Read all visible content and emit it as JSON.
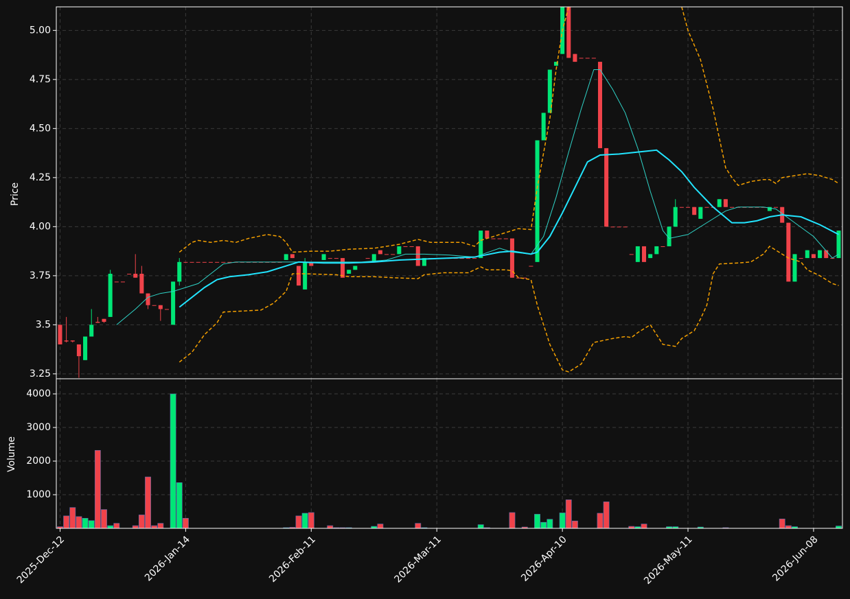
{
  "chart_data": {
    "type": "candlestick",
    "y_label": "Price",
    "y2_label": "Volume",
    "xlim": [
      -0.6,
      124.6
    ],
    "xticks": [
      {
        "value": 0,
        "label": "2025-Dec-12"
      },
      {
        "value": 20,
        "label": "2026-Jan-14"
      },
      {
        "value": 40,
        "label": "2026-Feb-11"
      },
      {
        "value": 60,
        "label": "2026-Mar-11"
      },
      {
        "value": 80,
        "label": "2026-Apr-10"
      },
      {
        "value": 100,
        "label": "2026-May-11"
      },
      {
        "value": 120,
        "label": "2026-Jun-08"
      }
    ],
    "ylim": [
      3.225,
      5.12
    ],
    "yticks": [
      3.25,
      3.5,
      3.75,
      {
        "value": 4,
        "label": "4.00"
      },
      4.25,
      {
        "value": 4.5,
        "label": "4.50"
      },
      4.75,
      {
        "value": 5,
        "label": "5.00"
      }
    ],
    "volume_ylim": [
      0,
      4450
    ],
    "volume_yticks": [
      1000,
      2000,
      3000,
      4000
    ],
    "grid": true,
    "up_color": "#00e676",
    "down_color": "#f0434a",
    "ohlc": [
      [
        3.5,
        3.5,
        3.4,
        3.4
      ],
      [
        3.42,
        3.54,
        3.41,
        3.415
      ],
      [
        3.42,
        3.42,
        3.41,
        3.415
      ],
      [
        3.4,
        3.4,
        3.23,
        3.34
      ],
      [
        3.32,
        3.44,
        3.32,
        3.44
      ],
      [
        3.44,
        3.58,
        3.44,
        3.5
      ],
      [
        3.515,
        3.54,
        3.51,
        3.51
      ],
      [
        3.53,
        3.53,
        3.51,
        3.515
      ],
      [
        3.54,
        3.78,
        3.54,
        3.76
      ],
      [
        3.72,
        3.72,
        3.72,
        3.719
      ],
      [
        3.72,
        3.72,
        3.72,
        3.719
      ],
      [
        3.76,
        3.76,
        3.76,
        3.759
      ],
      [
        3.76,
        3.86,
        3.74,
        3.74
      ],
      [
        3.76,
        3.8,
        3.66,
        3.66
      ],
      [
        3.66,
        3.66,
        3.58,
        3.6
      ],
      [
        3.6,
        3.6,
        3.6,
        3.599
      ],
      [
        3.6,
        3.6,
        3.52,
        3.58
      ],
      [
        3.58,
        3.58,
        3.58,
        3.579
      ],
      [
        3.5,
        3.72,
        3.5,
        3.72
      ],
      [
        3.72,
        3.84,
        3.7,
        3.82
      ],
      [
        3.82,
        3.82,
        3.82,
        3.819
      ],
      [
        3.82,
        3.82,
        3.82,
        3.819
      ],
      [
        3.82,
        3.82,
        3.82,
        3.819
      ],
      [
        3.82,
        3.82,
        3.82,
        3.819
      ],
      [
        3.82,
        3.82,
        3.82,
        3.819
      ],
      [
        3.82,
        3.82,
        3.82,
        3.819
      ],
      [
        3.82,
        3.82,
        3.82,
        3.819
      ],
      [
        3.82,
        3.82,
        3.82,
        3.819
      ],
      [
        3.82,
        3.82,
        3.82,
        3.819
      ],
      [
        3.82,
        3.82,
        3.82,
        3.819
      ],
      [
        3.82,
        3.82,
        3.82,
        3.819
      ],
      [
        3.82,
        3.82,
        3.82,
        3.819
      ],
      [
        3.82,
        3.82,
        3.82,
        3.819
      ],
      [
        3.82,
        3.82,
        3.82,
        3.819
      ],
      [
        3.82,
        3.82,
        3.82,
        3.819
      ],
      [
        3.82,
        3.82,
        3.82,
        3.819
      ],
      [
        3.83,
        3.86,
        3.83,
        3.86
      ],
      [
        3.86,
        3.86,
        3.84,
        3.84
      ],
      [
        3.8,
        3.8,
        3.7,
        3.7
      ],
      [
        3.68,
        3.84,
        3.68,
        3.82
      ],
      [
        3.82,
        3.82,
        3.8,
        3.8
      ],
      [
        3.82,
        3.82,
        3.82,
        3.819
      ],
      [
        3.83,
        3.86,
        3.83,
        3.86
      ],
      [
        3.84,
        3.84,
        3.84,
        3.839
      ],
      [
        3.84,
        3.84,
        3.84,
        3.839
      ],
      [
        3.84,
        3.84,
        3.74,
        3.74
      ],
      [
        3.76,
        3.78,
        3.76,
        3.78
      ],
      [
        3.78,
        3.8,
        3.78,
        3.8
      ],
      [
        3.82,
        3.82,
        3.82,
        3.819
      ],
      [
        3.84,
        3.84,
        3.84,
        3.839
      ],
      [
        3.82,
        3.86,
        3.82,
        3.86
      ],
      [
        3.88,
        3.88,
        3.86,
        3.86
      ],
      [
        3.86,
        3.86,
        3.86,
        3.859
      ],
      [
        3.86,
        3.86,
        3.86,
        3.859
      ],
      [
        3.86,
        3.9,
        3.86,
        3.9
      ],
      [
        3.9,
        3.9,
        3.9,
        3.899
      ],
      [
        3.9,
        3.9,
        3.9,
        3.899
      ],
      [
        3.9,
        3.9,
        3.8,
        3.8
      ],
      [
        3.8,
        3.84,
        3.8,
        3.84
      ],
      [
        3.84,
        3.84,
        3.84,
        3.839
      ],
      [
        3.84,
        3.84,
        3.84,
        3.839
      ],
      [
        3.84,
        3.84,
        3.84,
        3.839
      ],
      [
        3.84,
        3.84,
        3.84,
        3.839
      ],
      [
        3.84,
        3.84,
        3.84,
        3.839
      ],
      [
        3.84,
        3.84,
        3.84,
        3.839
      ],
      [
        3.84,
        3.84,
        3.84,
        3.839
      ],
      [
        3.84,
        3.84,
        3.84,
        3.839
      ],
      [
        3.84,
        3.98,
        3.84,
        3.98
      ],
      [
        3.98,
        3.98,
        3.94,
        3.94
      ],
      [
        3.94,
        3.94,
        3.94,
        3.939
      ],
      [
        3.94,
        3.94,
        3.94,
        3.939
      ],
      [
        3.94,
        3.94,
        3.94,
        3.939
      ],
      [
        3.94,
        3.94,
        3.74,
        3.74
      ],
      [
        3.74,
        3.74,
        3.74,
        3.739
      ],
      [
        3.74,
        3.74,
        3.74,
        3.739
      ],
      [
        3.8,
        3.8,
        3.8,
        3.799
      ],
      [
        3.82,
        4.44,
        3.82,
        4.44
      ],
      [
        4.44,
        4.58,
        4.44,
        4.58
      ],
      [
        4.58,
        4.8,
        4.58,
        4.8
      ],
      [
        4.82,
        4.84,
        4.82,
        4.84
      ],
      [
        4.88,
        5.12,
        4.88,
        5.12
      ],
      [
        5.12,
        5.12,
        4.86,
        4.86
      ],
      [
        4.88,
        4.88,
        4.84,
        4.84
      ],
      [
        4.86,
        4.86,
        4.86,
        4.859
      ],
      [
        4.86,
        4.86,
        4.86,
        4.859
      ],
      [
        4.86,
        4.86,
        4.86,
        4.859
      ],
      [
        4.84,
        4.84,
        4.4,
        4.4
      ],
      [
        4.4,
        4.4,
        4.0,
        4.0
      ],
      [
        4.0,
        4.0,
        4.0,
        3.999
      ],
      [
        4.0,
        4.0,
        4.0,
        3.999
      ],
      [
        4.0,
        4.0,
        4.0,
        3.999
      ],
      [
        3.86,
        3.86,
        3.86,
        3.859
      ],
      [
        3.82,
        3.9,
        3.82,
        3.9
      ],
      [
        3.9,
        3.9,
        3.82,
        3.82
      ],
      [
        3.84,
        3.86,
        3.84,
        3.86
      ],
      [
        3.86,
        3.9,
        3.86,
        3.9
      ],
      [
        3.9,
        3.9,
        3.9,
        3.899
      ],
      [
        3.9,
        4.0,
        3.9,
        4.0
      ],
      [
        4.0,
        4.14,
        4.0,
        4.1
      ],
      [
        4.1,
        4.1,
        4.1,
        4.099
      ],
      [
        4.1,
        4.1,
        4.1,
        4.099
      ],
      [
        4.1,
        4.1,
        4.06,
        4.06
      ],
      [
        4.04,
        4.1,
        4.04,
        4.1
      ],
      [
        4.1,
        4.1,
        4.1,
        4.099
      ],
      [
        4.1,
        4.1,
        4.1,
        4.099
      ],
      [
        4.1,
        4.14,
        4.1,
        4.14
      ],
      [
        4.14,
        4.14,
        4.1,
        4.1
      ],
      [
        4.1,
        4.1,
        4.1,
        4.099
      ],
      [
        4.1,
        4.1,
        4.1,
        4.099
      ],
      [
        4.1,
        4.1,
        4.1,
        4.099
      ],
      [
        4.1,
        4.1,
        4.1,
        4.099
      ],
      [
        4.1,
        4.1,
        4.1,
        4.099
      ],
      [
        4.1,
        4.1,
        4.1,
        4.099
      ],
      [
        4.08,
        4.1,
        4.08,
        4.1
      ],
      [
        4.1,
        4.1,
        4.1,
        4.099
      ],
      [
        4.1,
        4.1,
        4.02,
        4.02
      ],
      [
        4.02,
        4.02,
        3.72,
        3.72
      ],
      [
        3.72,
        3.86,
        3.72,
        3.86
      ],
      [
        3.84,
        3.84,
        3.84,
        3.839
      ],
      [
        3.84,
        3.88,
        3.84,
        3.88
      ],
      [
        3.86,
        3.86,
        3.84,
        3.84
      ],
      [
        3.84,
        3.88,
        3.84,
        3.88
      ],
      [
        3.88,
        3.88,
        3.84,
        3.84
      ],
      [
        3.84,
        3.84,
        3.84,
        3.839
      ],
      [
        3.84,
        3.98,
        3.84,
        3.98
      ]
    ],
    "volume": [
      50,
      370,
      620,
      350,
      300,
      230,
      2320,
      560,
      80,
      150,
      0,
      0,
      80,
      400,
      1530,
      80,
      150,
      0,
      4000,
      1360,
      300,
      0,
      0,
      0,
      0,
      0,
      0,
      0,
      0,
      0,
      0,
      0,
      0,
      0,
      0,
      0,
      20,
      30,
      370,
      450,
      470,
      0,
      0,
      80,
      20,
      20,
      20,
      0,
      0,
      0,
      60,
      130,
      0,
      0,
      0,
      0,
      0,
      150,
      20,
      0,
      0,
      0,
      0,
      0,
      0,
      0,
      0,
      110,
      20,
      0,
      0,
      0,
      470,
      0,
      40,
      0,
      420,
      180,
      270,
      0,
      460,
      850,
      220,
      0,
      0,
      0,
      450,
      790,
      0,
      0,
      0,
      60,
      50,
      130,
      0,
      0,
      0,
      50,
      50,
      0,
      0,
      0,
      40,
      0,
      0,
      0,
      20,
      0,
      0,
      0,
      0,
      0,
      0,
      0,
      0,
      280,
      80,
      50,
      0,
      0,
      0,
      0,
      0,
      0,
      70
    ],
    "lines": [
      {
        "color": "#2fd4c8",
        "width": 1,
        "dashed": false,
        "x": [
          9,
          12,
          14,
          16,
          18,
          20,
          22,
          24,
          26,
          28,
          32,
          36,
          40,
          44,
          48,
          52,
          55,
          58,
          62,
          66,
          70,
          72,
          75,
          77,
          79,
          81,
          83,
          85,
          86,
          88,
          90,
          92,
          94,
          96,
          97,
          100,
          103,
          106,
          108,
          112,
          114,
          117,
          120,
          123,
          124
        ],
        "values": [
          3.5,
          3.58,
          3.64,
          3.66,
          3.67,
          3.69,
          3.71,
          3.76,
          3.81,
          3.82,
          3.82,
          3.82,
          3.82,
          3.82,
          3.82,
          3.83,
          3.86,
          3.86,
          3.855,
          3.845,
          3.89,
          3.87,
          3.86,
          3.95,
          4.15,
          4.38,
          4.6,
          4.8,
          4.8,
          4.7,
          4.58,
          4.4,
          4.18,
          3.98,
          3.94,
          3.96,
          4.02,
          4.08,
          4.1,
          4.1,
          4.09,
          4.02,
          3.95,
          3.84,
          3.86
        ]
      },
      {
        "color": "#22e5ff",
        "width": 2,
        "dashed": false,
        "x": [
          19,
          21,
          23,
          25,
          27,
          30,
          33,
          36,
          38,
          42,
          46,
          50,
          54,
          58,
          62,
          66,
          70,
          72,
          75,
          76,
          78,
          80,
          82,
          84,
          86,
          89,
          92,
          95,
          97,
          99,
          101,
          104,
          107,
          109,
          111,
          113,
          115,
          118,
          121,
          124
        ],
        "values": [
          3.59,
          3.64,
          3.69,
          3.73,
          3.745,
          3.755,
          3.77,
          3.8,
          3.82,
          3.815,
          3.815,
          3.82,
          3.83,
          3.835,
          3.84,
          3.845,
          3.87,
          3.875,
          3.86,
          3.87,
          3.95,
          4.07,
          4.2,
          4.33,
          4.365,
          4.37,
          4.38,
          4.39,
          4.34,
          4.28,
          4.2,
          4.1,
          4.02,
          4.02,
          4.03,
          4.05,
          4.06,
          4.05,
          4.01,
          3.96
        ]
      },
      {
        "color": "#f5a000",
        "width": 1.5,
        "dashed": true,
        "x": [
          19,
          21,
          22,
          24,
          26,
          28,
          30,
          33,
          35,
          36,
          37,
          40,
          43,
          46,
          50,
          54,
          57,
          59,
          64,
          66,
          67,
          70,
          73,
          75,
          76,
          78,
          79,
          80,
          81,
          90,
          99,
          100,
          102,
          104,
          106,
          107,
          108,
          110,
          112,
          113,
          114,
          115,
          117,
          119,
          121,
          123,
          124
        ],
        "values": [
          3.87,
          3.92,
          3.93,
          3.92,
          3.93,
          3.92,
          3.94,
          3.96,
          3.95,
          3.92,
          3.87,
          3.875,
          3.875,
          3.885,
          3.89,
          3.91,
          3.935,
          3.92,
          3.92,
          3.9,
          3.93,
          3.96,
          3.99,
          3.985,
          4.2,
          4.55,
          4.8,
          5.0,
          5.12,
          null,
          5.12,
          5.0,
          4.85,
          4.6,
          4.3,
          4.25,
          4.21,
          4.23,
          4.24,
          4.24,
          4.22,
          4.25,
          4.26,
          4.27,
          4.26,
          4.24,
          4.22
        ]
      },
      {
        "color": "#f5a000",
        "width": 1.5,
        "dashed": true,
        "x": [
          19,
          21,
          23,
          25,
          26,
          29,
          32,
          34,
          36,
          37,
          39,
          44,
          46,
          50,
          53,
          57,
          58,
          61,
          65,
          67,
          68,
          71,
          72,
          73,
          75,
          76,
          78,
          80,
          81,
          83,
          85,
          88,
          90,
          91,
          92,
          94,
          95,
          96,
          98,
          99,
          101,
          102,
          103,
          104,
          105,
          108,
          110,
          112,
          113,
          114,
          116,
          118,
          119,
          121,
          123,
          124
        ],
        "values": [
          3.31,
          3.36,
          3.45,
          3.51,
          3.565,
          3.57,
          3.575,
          3.61,
          3.67,
          3.76,
          3.76,
          3.755,
          3.745,
          3.745,
          3.74,
          3.735,
          3.755,
          3.765,
          3.765,
          3.795,
          3.78,
          3.78,
          3.775,
          3.74,
          3.73,
          3.6,
          3.4,
          3.27,
          3.26,
          3.3,
          3.41,
          3.43,
          3.44,
          3.435,
          3.46,
          3.5,
          3.45,
          3.4,
          3.39,
          3.43,
          3.47,
          3.53,
          3.6,
          3.76,
          3.81,
          3.815,
          3.82,
          3.86,
          3.9,
          3.88,
          3.84,
          3.82,
          3.78,
          3.75,
          3.71,
          3.7
        ]
      }
    ]
  }
}
